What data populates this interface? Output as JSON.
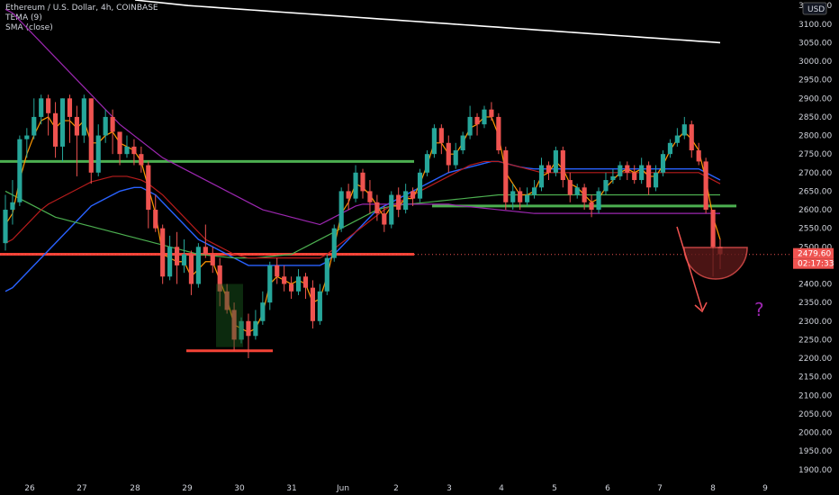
{
  "legend": {
    "title": "Ethereum / U.S. Dollar, 4h, COINBASE",
    "ind1": "TEMA (9)",
    "ind2": "SMA (close)"
  },
  "axis": {
    "currency": "USD",
    "price_label": "2479.60",
    "countdown_label": "02:17:33",
    "question_mark": "?"
  },
  "colors": {
    "bull": "#26a69a",
    "bear": "#ef5350",
    "background": "#000000",
    "tema": "#ff9800",
    "sma_purple": "#9c27b0",
    "ma_blue": "#2962ff",
    "ma_green": "#4caf50",
    "ma_red": "#b71c1c",
    "sma_white": "#ffffff",
    "support_green": "#4caf50",
    "resistance_red": "#f44336"
  },
  "chart_data": {
    "type": "candlestick",
    "yticks": [
      "3150.00",
      "3100.00",
      "3050.00",
      "3000.00",
      "2950.00",
      "2900.00",
      "2850.00",
      "2800.00",
      "2750.00",
      "2700.00",
      "2650.00",
      "2600.00",
      "2550.00",
      "2500.00",
      "2450.00",
      "2400.00",
      "2350.00",
      "2300.00",
      "2250.00",
      "2200.00",
      "2150.00",
      "2100.00",
      "2050.00",
      "2000.00",
      "1950.00",
      "1900.00"
    ],
    "xticks": [
      "26",
      "27",
      "28",
      "29",
      "30",
      "31",
      "Jun",
      "2",
      "3",
      "4",
      "5",
      "6",
      "7",
      "8",
      "9"
    ],
    "ylim": [
      1880,
      3165
    ],
    "last_price": 2479.6,
    "candles": [
      [
        2510,
        2600,
        2640,
        2490
      ],
      [
        2600,
        2620,
        2680,
        2560
      ],
      [
        2620,
        2790,
        2800,
        2610
      ],
      [
        2790,
        2800,
        2820,
        2740
      ],
      [
        2800,
        2850,
        2900,
        2790
      ],
      [
        2850,
        2900,
        2910,
        2830
      ],
      [
        2900,
        2860,
        2910,
        2800
      ],
      [
        2860,
        2770,
        2890,
        2740
      ],
      [
        2770,
        2900,
        2900,
        2730
      ],
      [
        2900,
        2850,
        2910,
        2780
      ],
      [
        2850,
        2800,
        2880,
        2690
      ],
      [
        2800,
        2900,
        2910,
        2780
      ],
      [
        2900,
        2700,
        2900,
        2670
      ],
      [
        2700,
        2800,
        2830,
        2690
      ],
      [
        2800,
        2850,
        2870,
        2780
      ],
      [
        2850,
        2810,
        2870,
        2750
      ],
      [
        2810,
        2750,
        2800,
        2720
      ],
      [
        2750,
        2770,
        2800,
        2740
      ],
      [
        2770,
        2750,
        2790,
        2720
      ],
      [
        2750,
        2720,
        2770,
        2700
      ],
      [
        2720,
        2600,
        2730,
        2550
      ],
      [
        2600,
        2550,
        2640,
        2540
      ],
      [
        2550,
        2420,
        2560,
        2400
      ],
      [
        2420,
        2500,
        2530,
        2410
      ],
      [
        2500,
        2450,
        2540,
        2400
      ],
      [
        2450,
        2480,
        2520,
        2430
      ],
      [
        2480,
        2400,
        2490,
        2370
      ],
      [
        2400,
        2500,
        2510,
        2390
      ],
      [
        2500,
        2480,
        2560,
        2470
      ],
      [
        2480,
        2450,
        2500,
        2430
      ],
      [
        2450,
        2380,
        2470,
        2340
      ],
      [
        2380,
        2330,
        2400,
        2320
      ],
      [
        2330,
        2250,
        2350,
        2220
      ],
      [
        2250,
        2300,
        2310,
        2240
      ],
      [
        2300,
        2260,
        2320,
        2200
      ],
      [
        2260,
        2300,
        2330,
        2250
      ],
      [
        2300,
        2350,
        2380,
        2290
      ],
      [
        2350,
        2450,
        2460,
        2330
      ],
      [
        2450,
        2420,
        2470,
        2400
      ],
      [
        2420,
        2400,
        2450,
        2380
      ],
      [
        2400,
        2380,
        2420,
        2360
      ],
      [
        2380,
        2420,
        2440,
        2370
      ],
      [
        2420,
        2390,
        2430,
        2360
      ],
      [
        2390,
        2300,
        2410,
        2280
      ],
      [
        2300,
        2380,
        2400,
        2290
      ],
      [
        2380,
        2470,
        2480,
        2370
      ],
      [
        2470,
        2550,
        2560,
        2460
      ],
      [
        2550,
        2650,
        2660,
        2540
      ],
      [
        2650,
        2630,
        2670,
        2600
      ],
      [
        2630,
        2700,
        2720,
        2620
      ],
      [
        2700,
        2650,
        2710,
        2630
      ],
      [
        2650,
        2620,
        2680,
        2590
      ],
      [
        2620,
        2590,
        2640,
        2570
      ],
      [
        2590,
        2560,
        2610,
        2540
      ],
      [
        2560,
        2640,
        2650,
        2550
      ],
      [
        2640,
        2600,
        2660,
        2580
      ],
      [
        2600,
        2650,
        2670,
        2590
      ],
      [
        2650,
        2630,
        2660,
        2610
      ],
      [
        2630,
        2700,
        2710,
        2620
      ],
      [
        2700,
        2750,
        2760,
        2690
      ],
      [
        2750,
        2820,
        2830,
        2740
      ],
      [
        2820,
        2780,
        2830,
        2750
      ],
      [
        2780,
        2720,
        2800,
        2700
      ],
      [
        2720,
        2760,
        2780,
        2710
      ],
      [
        2760,
        2800,
        2810,
        2750
      ],
      [
        2800,
        2850,
        2880,
        2790
      ],
      [
        2850,
        2830,
        2860,
        2800
      ],
      [
        2830,
        2870,
        2880,
        2820
      ],
      [
        2870,
        2850,
        2890,
        2840
      ],
      [
        2850,
        2760,
        2860,
        2750
      ],
      [
        2760,
        2620,
        2770,
        2600
      ],
      [
        2620,
        2650,
        2670,
        2600
      ],
      [
        2650,
        2620,
        2660,
        2600
      ],
      [
        2620,
        2640,
        2660,
        2610
      ],
      [
        2640,
        2660,
        2680,
        2630
      ],
      [
        2660,
        2720,
        2740,
        2650
      ],
      [
        2720,
        2700,
        2730,
        2680
      ],
      [
        2700,
        2760,
        2770,
        2690
      ],
      [
        2760,
        2680,
        2770,
        2660
      ],
      [
        2680,
        2640,
        2700,
        2620
      ],
      [
        2640,
        2660,
        2670,
        2630
      ],
      [
        2660,
        2620,
        2670,
        2600
      ],
      [
        2620,
        2600,
        2640,
        2580
      ],
      [
        2600,
        2650,
        2660,
        2590
      ],
      [
        2650,
        2680,
        2700,
        2640
      ],
      [
        2680,
        2690,
        2710,
        2670
      ],
      [
        2690,
        2720,
        2730,
        2680
      ],
      [
        2720,
        2700,
        2730,
        2680
      ],
      [
        2700,
        2680,
        2720,
        2670
      ],
      [
        2680,
        2720,
        2740,
        2670
      ],
      [
        2720,
        2660,
        2730,
        2640
      ],
      [
        2660,
        2700,
        2720,
        2650
      ],
      [
        2700,
        2750,
        2760,
        2690
      ],
      [
        2750,
        2780,
        2790,
        2740
      ],
      [
        2780,
        2800,
        2820,
        2770
      ],
      [
        2800,
        2830,
        2850,
        2790
      ],
      [
        2830,
        2760,
        2840,
        2740
      ],
      [
        2760,
        2730,
        2780,
        2720
      ],
      [
        2730,
        2600,
        2740,
        2590
      ],
      [
        2600,
        2500,
        2600,
        2420
      ],
      [
        2500,
        2480,
        2520,
        2440
      ]
    ],
    "indicators": {
      "tema": [
        2560,
        2590,
        2680,
        2750,
        2800,
        2840,
        2850,
        2820,
        2840,
        2840,
        2820,
        2840,
        2780,
        2780,
        2800,
        2810,
        2780,
        2770,
        2760,
        2730,
        2660,
        2590,
        2480,
        2470,
        2460,
        2460,
        2420,
        2440,
        2460,
        2460,
        2410,
        2360,
        2290,
        2280,
        2270,
        2280,
        2320,
        2400,
        2420,
        2410,
        2400,
        2410,
        2400,
        2350,
        2360,
        2420,
        2500,
        2590,
        2620,
        2670,
        2660,
        2640,
        2610,
        2580,
        2610,
        2610,
        2630,
        2630,
        2670,
        2720,
        2780,
        2780,
        2750,
        2750,
        2780,
        2820,
        2830,
        2850,
        2850,
        2800,
        2700,
        2670,
        2640,
        2640,
        2650,
        2690,
        2700,
        2730,
        2710,
        2670,
        2660,
        2640,
        2620,
        2630,
        2660,
        2680,
        2700,
        2710,
        2700,
        2710,
        2690,
        2690,
        2720,
        2760,
        2790,
        2810,
        2790,
        2760,
        2680,
        2580,
        2520
      ],
      "sma_purple": [
        3140,
        3130,
        3110,
        3090,
        3070,
        3050,
        3030,
        3010,
        2990,
        2970,
        2950,
        2930,
        2910,
        2890,
        2870,
        2850,
        2830,
        2815,
        2800,
        2785,
        2770,
        2755,
        2740,
        2730,
        2720,
        2710,
        2700,
        2690,
        2680,
        2670,
        2660,
        2650,
        2640,
        2630,
        2620,
        2610,
        2600,
        2595,
        2590,
        2585,
        2580,
        2575,
        2570,
        2565,
        2560,
        2570,
        2580,
        2590,
        2600,
        2610,
        2615,
        2615,
        2615,
        2615,
        2615,
        2615,
        2615,
        2615,
        2615,
        2615,
        2615,
        2615,
        2615,
        2612,
        2610,
        2608,
        2606,
        2604,
        2602,
        2600,
        2598,
        2596,
        2594,
        2592,
        2590,
        2590,
        2590,
        2590,
        2590,
        2590,
        2590,
        2590,
        2590,
        2590,
        2590,
        2590,
        2590,
        2590,
        2590,
        2590,
        2590,
        2590,
        2590,
        2590,
        2590,
        2590,
        2590,
        2590,
        2590,
        2590,
        2590
      ],
      "ma_blue": [
        2380,
        2390,
        2410,
        2430,
        2450,
        2470,
        2490,
        2510,
        2530,
        2550,
        2570,
        2590,
        2610,
        2620,
        2630,
        2640,
        2650,
        2655,
        2660,
        2660,
        2650,
        2640,
        2620,
        2600,
        2580,
        2560,
        2540,
        2520,
        2510,
        2500,
        2490,
        2480,
        2470,
        2460,
        2450,
        2450,
        2450,
        2450,
        2450,
        2450,
        2450,
        2450,
        2450,
        2450,
        2450,
        2460,
        2480,
        2500,
        2520,
        2540,
        2560,
        2580,
        2600,
        2610,
        2620,
        2630,
        2640,
        2650,
        2660,
        2670,
        2680,
        2690,
        2700,
        2705,
        2710,
        2715,
        2720,
        2725,
        2730,
        2730,
        2725,
        2720,
        2715,
        2712,
        2710,
        2710,
        2710,
        2710,
        2710,
        2710,
        2710,
        2710,
        2710,
        2710,
        2710,
        2710,
        2710,
        2710,
        2710,
        2710,
        2710,
        2710,
        2710,
        2710,
        2710,
        2710,
        2710,
        2710,
        2700,
        2690,
        2680
      ],
      "ma_green": [
        2650,
        2640,
        2630,
        2620,
        2610,
        2600,
        2590,
        2580,
        2575,
        2570,
        2565,
        2560,
        2555,
        2550,
        2545,
        2540,
        2535,
        2530,
        2525,
        2520,
        2515,
        2510,
        2505,
        2500,
        2495,
        2490,
        2485,
        2480,
        2478,
        2476,
        2474,
        2472,
        2470,
        2470,
        2470,
        2470,
        2472,
        2474,
        2476,
        2478,
        2480,
        2490,
        2500,
        2510,
        2520,
        2530,
        2540,
        2550,
        2560,
        2570,
        2580,
        2590,
        2600,
        2605,
        2610,
        2612,
        2614,
        2616,
        2618,
        2620,
        2622,
        2624,
        2626,
        2628,
        2630,
        2632,
        2634,
        2636,
        2638,
        2640,
        2640,
        2640,
        2640,
        2640,
        2640,
        2640,
        2640,
        2640,
        2640,
        2640,
        2640,
        2640,
        2640,
        2640,
        2640,
        2640,
        2640,
        2640,
        2640,
        2640,
        2640,
        2640,
        2640,
        2640,
        2640,
        2640,
        2640,
        2640,
        2640,
        2640,
        2640
      ],
      "ma_red": [
        2510,
        2520,
        2540,
        2560,
        2580,
        2600,
        2615,
        2625,
        2635,
        2645,
        2655,
        2665,
        2675,
        2680,
        2685,
        2690,
        2690,
        2690,
        2685,
        2680,
        2670,
        2655,
        2640,
        2620,
        2600,
        2580,
        2560,
        2540,
        2520,
        2510,
        2500,
        2490,
        2480,
        2475,
        2470,
        2470,
        2470,
        2470,
        2470,
        2470,
        2470,
        2470,
        2470,
        2470,
        2470,
        2480,
        2495,
        2510,
        2525,
        2540,
        2555,
        2570,
        2585,
        2600,
        2610,
        2620,
        2630,
        2640,
        2650,
        2660,
        2670,
        2680,
        2690,
        2700,
        2710,
        2720,
        2725,
        2730,
        2730,
        2730,
        2725,
        2720,
        2715,
        2710,
        2705,
        2700,
        2700,
        2700,
        2700,
        2700,
        2700,
        2700,
        2700,
        2700,
        2700,
        2700,
        2700,
        2700,
        2700,
        2700,
        2700,
        2700,
        2700,
        2700,
        2700,
        2700,
        2700,
        2700,
        2690,
        2680,
        2670
      ],
      "sma_white": [
        3165,
        3162,
        3159,
        3156,
        3153,
        3150,
        3148,
        3146,
        3144,
        3142,
        3140,
        3138,
        3136,
        3134,
        3132,
        3130,
        3128,
        3126,
        3124,
        3122,
        3120,
        3118,
        3116,
        3114,
        3112,
        3110,
        3108,
        3106,
        3104,
        3102,
        3100,
        3098,
        3096,
        3094,
        3092,
        3090,
        3088,
        3086,
        3084,
        3082,
        3080,
        3078,
        3076,
        3074,
        3072,
        3070,
        3068,
        3066,
        3064,
        3062,
        3060,
        3058,
        3056,
        3054,
        3052,
        3050
      ]
    },
    "levels": {
      "green_resistance": 2730,
      "green_support": 2610,
      "red_support": 2480,
      "red_low": 2220
    }
  }
}
